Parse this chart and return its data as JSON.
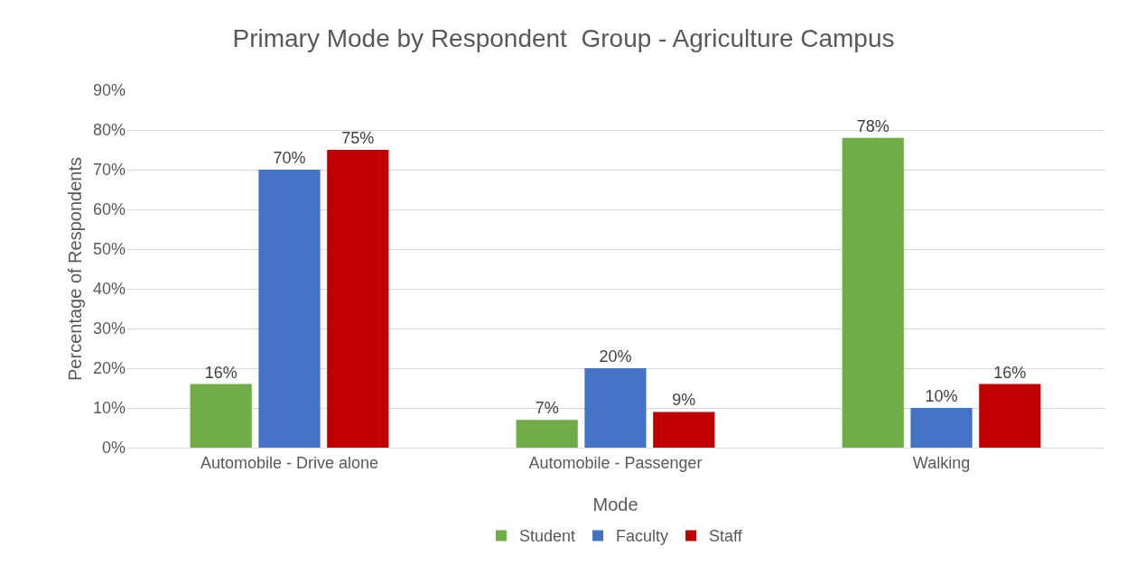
{
  "chart_data": {
    "type": "bar",
    "title": "Primary Mode by Respondent  Group - Agriculture Campus",
    "xlabel": "Mode",
    "ylabel": "Percentage of Respondents",
    "categories": [
      "Automobile - Drive alone",
      "Automobile - Passenger",
      "Walking"
    ],
    "series": [
      {
        "name": "Student",
        "color": "#70ad47",
        "values": [
          16,
          7,
          78
        ],
        "value_labels": [
          "16%",
          "7%",
          "78%"
        ]
      },
      {
        "name": "Faculty",
        "color": "#4472c4",
        "values": [
          70,
          20,
          10
        ],
        "value_labels": [
          "70%",
          "20%",
          "10%"
        ]
      },
      {
        "name": "Staff",
        "color": "#c00000",
        "values": [
          75,
          9,
          16
        ],
        "value_labels": [
          "75%",
          "9%",
          "16%"
        ]
      }
    ],
    "ylim": [
      0,
      90
    ],
    "yticks": [
      {
        "value": 0,
        "label": "0%"
      },
      {
        "value": 10,
        "label": "10%"
      },
      {
        "value": 20,
        "label": "20%"
      },
      {
        "value": 30,
        "label": "30%"
      },
      {
        "value": 40,
        "label": "40%"
      },
      {
        "value": 50,
        "label": "50%"
      },
      {
        "value": 60,
        "label": "60%"
      },
      {
        "value": 70,
        "label": "70%"
      },
      {
        "value": 80,
        "label": "80%"
      },
      {
        "value": 90,
        "label": "90%"
      }
    ],
    "grid": "y",
    "legend": "bottom"
  }
}
